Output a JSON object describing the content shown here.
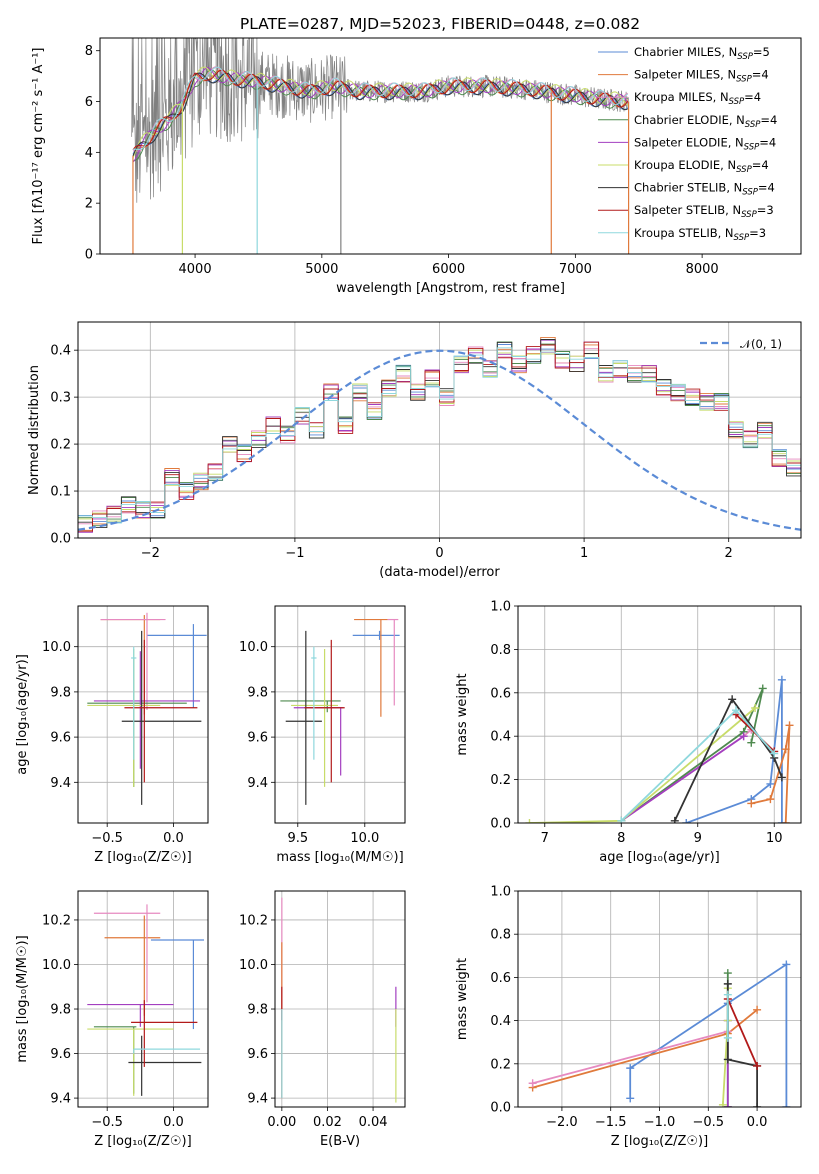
{
  "title": "PLATE=0287, MJD=52023, FIBERID=0448, z=0.082",
  "colors": {
    "Chabrier MILES": "#5b8bd6",
    "Salpeter MILES": "#e07a3c",
    "Kroupa MILES": "#e68ac0",
    "Chabrier ELODIE": "#4f8a4f",
    "Salpeter ELODIE": "#a33fc0",
    "Kroupa ELODIE": "#c8dc6a",
    "Chabrier STELIB": "#333333",
    "Salpeter STELIB": "#b21a1a",
    "Kroupa STELIB": "#8fd8dd",
    "data": "#808080"
  },
  "chart_data": [
    {
      "id": "spectrum",
      "type": "line",
      "xlabel": "wavelength [Angstrom, rest frame]",
      "ylabel": "Flux [fλ10⁻¹⁷ erg cm⁻² s⁻¹ A⁻¹]",
      "xlim": [
        3250,
        8780
      ],
      "ylim": [
        0,
        8.5
      ],
      "xticks": [
        4000,
        5000,
        6000,
        7000,
        8000
      ],
      "yticks": [
        0,
        2,
        4,
        6,
        8
      ],
      "grid": false,
      "legend_position": "right",
      "legend": [
        "Chabrier MILES, NSSP=5",
        "Salpeter MILES, NSSP=4",
        "Kroupa MILES, NSSP=4",
        "Chabrier ELODIE, NSSP=4",
        "Salpeter ELODIE, NSSP=4",
        "Kroupa ELODIE, NSSP=4",
        "Chabrier STELIB, NSSP=4",
        "Salpeter STELIB, NSSP=3",
        "Kroupa STELIB, NSSP=3"
      ],
      "continuum": {
        "x": [
          3500,
          3600,
          3700,
          3800,
          3900,
          4000,
          4100,
          4200,
          4300,
          4500,
          4700,
          4900,
          5100,
          5300,
          5500,
          5800,
          6000,
          6300,
          6600,
          6900,
          7200,
          7420
        ],
        "y": [
          3.8,
          4.4,
          4.9,
          5.3,
          5.9,
          6.9,
          7.1,
          7.0,
          6.9,
          6.8,
          6.6,
          6.4,
          6.6,
          6.4,
          6.4,
          6.4,
          6.6,
          6.6,
          6.5,
          6.3,
          6.1,
          6.0
        ]
      },
      "drop_markers": [
        {
          "x": 3510,
          "series": "Salpeter MILES"
        },
        {
          "x": 3900,
          "series": "Kroupa ELODIE"
        },
        {
          "x": 4490,
          "series": "Kroupa STELIB"
        },
        {
          "x": 5150,
          "series": "data"
        },
        {
          "x": 6810,
          "series": "Salpeter MILES"
        },
        {
          "x": 7420,
          "series": "Salpeter MILES"
        }
      ]
    },
    {
      "id": "residuals",
      "type": "bar",
      "xlabel": "(data-model)/error",
      "ylabel": "Normed distribution",
      "xlim": [
        -2.5,
        2.5
      ],
      "ylim": [
        0,
        0.46
      ],
      "xticks": [
        -2,
        -1,
        0,
        1,
        2
      ],
      "yticks": [
        0.0,
        0.1,
        0.2,
        0.3,
        0.4
      ],
      "grid": true,
      "legend": [
        "𝒩(0, 1)"
      ],
      "legend_position": "top-right",
      "bin_width": 0.1,
      "bin_values": [
        0.02,
        0.03,
        0.04,
        0.05,
        0.07,
        0.06,
        0.06,
        0.13,
        0.1,
        0.12,
        0.14,
        0.2,
        0.18,
        0.21,
        0.24,
        0.22,
        0.26,
        0.23,
        0.31,
        0.24,
        0.31,
        0.27,
        0.32,
        0.35,
        0.31,
        0.34,
        0.3,
        0.37,
        0.39,
        0.36,
        0.4,
        0.37,
        0.39,
        0.41,
        0.38,
        0.37,
        0.4,
        0.35,
        0.36,
        0.35,
        0.35,
        0.32,
        0.31,
        0.3,
        0.29,
        0.29,
        0.23,
        0.21,
        0.23,
        0.17,
        0.15,
        0.12,
        0.12,
        0.1,
        0.1,
        0.09,
        0.08,
        0.07,
        0.06,
        0.05,
        0.05,
        0.05,
        0.06,
        0.05,
        0.05,
        0.04,
        0.04,
        0.04,
        0.03,
        0.03
      ],
      "gaussian": {
        "mu": 0,
        "sigma": 1
      }
    },
    {
      "id": "age_vs_Z",
      "type": "scatter",
      "xlabel": "Z [log₁₀(Z/Z☉)]",
      "ylabel": "age [log₁₀(age/yr)]",
      "xlim": [
        -0.72,
        0.26
      ],
      "ylim": [
        9.22,
        10.18
      ],
      "xticks": [
        -0.5,
        0.0
      ],
      "yticks": [
        9.4,
        9.6,
        9.8,
        10.0
      ],
      "grid": true,
      "points": [
        {
          "series": "Chabrier MILES",
          "x": 0.15,
          "y": 10.05,
          "xerr": [
            0.35,
            0.1
          ],
          "yerr": [
            0.32,
            0.05
          ]
        },
        {
          "series": "Salpeter MILES",
          "x": -0.22,
          "y": 10.12,
          "xerr": [
            0.33,
            0.12
          ],
          "yerr": [
            0.42,
            0.02
          ]
        },
        {
          "series": "Kroupa MILES",
          "x": -0.2,
          "y": 10.12,
          "xerr": [
            0.35,
            0.14
          ],
          "yerr": [
            0.4,
            0.03
          ]
        },
        {
          "series": "Chabrier ELODIE",
          "x": -0.3,
          "y": 9.75,
          "xerr": [
            0.35,
            0.4
          ],
          "yerr": [
            0.37,
            0.2
          ]
        },
        {
          "series": "Salpeter ELODIE",
          "x": -0.25,
          "y": 9.76,
          "xerr": [
            0.35,
            0.45
          ],
          "yerr": [
            0.3,
            0.22
          ]
        },
        {
          "series": "Kroupa ELODIE",
          "x": -0.3,
          "y": 9.74,
          "xerr": [
            0.35,
            0.2
          ],
          "yerr": [
            0.36,
            0.25
          ]
        },
        {
          "series": "Chabrier STELIB",
          "x": -0.24,
          "y": 9.67,
          "xerr": [
            0.15,
            0.45
          ],
          "yerr": [
            0.37,
            0.4
          ]
        },
        {
          "series": "Salpeter STELIB",
          "x": -0.22,
          "y": 9.73,
          "xerr": [
            0.15,
            0.4
          ],
          "yerr": [
            0.33,
            0.3
          ]
        },
        {
          "series": "Kroupa STELIB",
          "x": -0.3,
          "y": 9.95,
          "xerr": [
            0.02,
            0.02
          ],
          "yerr": [
            0.45,
            0.05
          ]
        }
      ]
    },
    {
      "id": "age_vs_mass",
      "type": "scatter",
      "xlabel": "mass [log₁₀(M/M☉)]",
      "ylabel": "",
      "xlim": [
        9.33,
        10.3
      ],
      "ylim": [
        9.22,
        10.18
      ],
      "xticks": [
        9.5,
        10.0
      ],
      "yticks": [
        9.4,
        9.6,
        9.8,
        10.0
      ],
      "grid": true,
      "points": [
        {
          "series": "Chabrier MILES",
          "x": 10.11,
          "y": 10.05,
          "xerr": [
            0.2,
            0.15
          ],
          "yerr": [
            0.02,
            0.02
          ]
        },
        {
          "series": "Salpeter MILES",
          "x": 10.12,
          "y": 10.12,
          "xerr": [
            0.2,
            0.05
          ],
          "yerr": [
            0.43,
            0.0
          ]
        },
        {
          "series": "Kroupa MILES",
          "x": 10.22,
          "y": 10.12,
          "xerr": [
            0.05,
            0.03
          ],
          "yerr": [
            0.38,
            0.0
          ]
        },
        {
          "series": "Chabrier ELODIE",
          "x": 9.72,
          "y": 9.76,
          "xerr": [
            0.35,
            0.1
          ],
          "yerr": [
            0.05,
            0.0
          ]
        },
        {
          "series": "Salpeter ELODIE",
          "x": 9.82,
          "y": 9.73,
          "xerr": [
            0.35,
            0.02
          ],
          "yerr": [
            0.3,
            0.0
          ]
        },
        {
          "series": "Kroupa ELODIE",
          "x": 9.7,
          "y": 9.74,
          "xerr": [
            0.25,
            0.1
          ],
          "yerr": [
            0.36,
            0.25
          ]
        },
        {
          "series": "Chabrier STELIB",
          "x": 9.56,
          "y": 9.67,
          "xerr": [
            0.15,
            0.12
          ],
          "yerr": [
            0.37,
            0.4
          ]
        },
        {
          "series": "Salpeter STELIB",
          "x": 9.75,
          "y": 9.73,
          "xerr": [
            0.2,
            0.1
          ],
          "yerr": [
            0.33,
            0.3
          ]
        },
        {
          "series": "Kroupa STELIB",
          "x": 9.62,
          "y": 9.95,
          "xerr": [
            0.02,
            0.02
          ],
          "yerr": [
            0.45,
            0.05
          ]
        }
      ]
    },
    {
      "id": "massweight_vs_age",
      "type": "line",
      "xlabel": "age [log₁₀(age/yr)]",
      "ylabel": "mass weight",
      "xlim": [
        6.65,
        10.35
      ],
      "ylim": [
        0,
        1.0
      ],
      "xticks": [
        7,
        8,
        9,
        10
      ],
      "yticks": [
        0.0,
        0.2,
        0.4,
        0.6,
        0.8,
        1.0
      ],
      "grid": true,
      "series": [
        {
          "name": "Chabrier MILES",
          "x": [
            8.85,
            9.7,
            9.95,
            10.1,
            10.1
          ],
          "y": [
            0.0,
            0.11,
            0.18,
            0.66,
            0.0
          ]
        },
        {
          "name": "Salpeter MILES",
          "x": [
            9.7,
            9.95,
            10.15,
            10.2,
            10.15
          ],
          "y": [
            0.09,
            0.11,
            0.34,
            0.45,
            0.0
          ]
        },
        {
          "name": "Kroupa MILES",
          "x": [
            8.0,
            9.6,
            9.7
          ],
          "y": [
            0.01,
            0.4,
            0.43
          ]
        },
        {
          "name": "Chabrier ELODIE",
          "x": [
            8.0,
            9.6,
            9.85,
            9.7
          ],
          "y": [
            0.01,
            0.42,
            0.62,
            0.37
          ]
        },
        {
          "name": "Salpeter ELODIE",
          "x": [
            8.0,
            9.6
          ],
          "y": [
            0.01,
            0.4
          ]
        },
        {
          "name": "Kroupa ELODIE",
          "x": [
            6.8,
            8.0,
            9.75
          ],
          "y": [
            0.0,
            0.01,
            0.53
          ]
        },
        {
          "name": "Chabrier STELIB",
          "x": [
            8.7,
            9.45,
            10.0,
            10.1
          ],
          "y": [
            0.01,
            0.57,
            0.3,
            0.21
          ]
        },
        {
          "name": "Salpeter STELIB",
          "x": [
            9.5,
            10.0
          ],
          "y": [
            0.5,
            0.33
          ]
        },
        {
          "name": "Kroupa STELIB",
          "x": [
            8.0,
            9.5,
            10.0
          ],
          "y": [
            0.01,
            0.52,
            0.32
          ]
        }
      ]
    },
    {
      "id": "mass_vs_Z",
      "type": "scatter",
      "xlabel": "Z [log₁₀(Z/Z☉)]",
      "ylabel": "mass [log₁₀(M/M☉)]",
      "xlim": [
        -0.72,
        0.26
      ],
      "ylim": [
        9.36,
        10.33
      ],
      "xticks": [
        -0.5,
        0.0
      ],
      "yticks": [
        9.4,
        9.6,
        9.8,
        10.0,
        10.2
      ],
      "grid": true,
      "points": [
        {
          "series": "Chabrier MILES",
          "x": 0.15,
          "y": 10.11,
          "xerr": [
            0.32,
            0.08
          ],
          "yerr": [
            0.4,
            0.0
          ]
        },
        {
          "series": "Salpeter MILES",
          "x": -0.22,
          "y": 10.12,
          "xerr": [
            0.3,
            0.12
          ],
          "yerr": [
            0.35,
            0.1
          ]
        },
        {
          "series": "Kroupa MILES",
          "x": -0.2,
          "y": 10.23,
          "xerr": [
            0.4,
            0.1
          ],
          "yerr": [
            0.4,
            0.04
          ]
        },
        {
          "series": "Chabrier ELODIE",
          "x": -0.3,
          "y": 9.72,
          "xerr": [
            0.3,
            0.02
          ],
          "yerr": [
            0.3,
            0.0
          ]
        },
        {
          "series": "Salpeter ELODIE",
          "x": -0.25,
          "y": 9.82,
          "xerr": [
            0.4,
            0.25
          ],
          "yerr": [
            0.1,
            0.0
          ]
        },
        {
          "series": "Kroupa ELODIE",
          "x": -0.3,
          "y": 9.71,
          "xerr": [
            0.35,
            0.3
          ],
          "yerr": [
            0.3,
            0.0
          ]
        },
        {
          "series": "Chabrier STELIB",
          "x": -0.24,
          "y": 9.56,
          "xerr": [
            0.1,
            0.45
          ],
          "yerr": [
            0.15,
            0.12
          ]
        },
        {
          "series": "Salpeter STELIB",
          "x": -0.22,
          "y": 9.74,
          "xerr": [
            0.1,
            0.4
          ],
          "yerr": [
            0.2,
            0.1
          ]
        },
        {
          "series": "Kroupa STELIB",
          "x": -0.3,
          "y": 9.62,
          "xerr": [
            0.0,
            0.5
          ],
          "yerr": [
            0.02,
            0.0
          ]
        }
      ]
    },
    {
      "id": "mass_vs_EBV",
      "type": "scatter",
      "xlabel": "E(B-V)",
      "ylabel": "",
      "xlim": [
        -0.003,
        0.054
      ],
      "ylim": [
        9.36,
        10.33
      ],
      "xticks": [
        0.0,
        0.02,
        0.04
      ],
      "yticks": [
        9.4,
        9.6,
        9.8,
        10.0,
        10.2
      ],
      "grid": true,
      "points": [
        {
          "series": "Kroupa MILES",
          "x": 0.0,
          "y": 10.1,
          "xerr": [
            0.0,
            0.0
          ],
          "yerr": [
            0.7,
            0.2
          ]
        },
        {
          "series": "Salpeter MILES",
          "x": 0.0,
          "y": 10.0,
          "xerr": [
            0.0,
            0.0
          ],
          "yerr": [
            0.6,
            0.1
          ]
        },
        {
          "series": "Salpeter STELIB",
          "x": 0.0,
          "y": 9.85,
          "xerr": [
            0.0,
            0.0
          ],
          "yerr": [
            0.1,
            0.05
          ]
        },
        {
          "series": "Kroupa STELIB",
          "x": 0.0,
          "y": 9.6,
          "xerr": [
            0.0,
            0.0
          ],
          "yerr": [
            0.2,
            0.2
          ]
        },
        {
          "series": "Salpeter ELODIE",
          "x": 0.05,
          "y": 9.82,
          "xerr": [
            0.0,
            0.0
          ],
          "yerr": [
            0.1,
            0.08
          ]
        },
        {
          "series": "Kroupa ELODIE",
          "x": 0.05,
          "y": 9.6,
          "xerr": [
            0.0,
            0.0
          ],
          "yerr": [
            0.22,
            0.2
          ]
        }
      ]
    },
    {
      "id": "massweight_vs_Z",
      "type": "line",
      "xlabel": "Z [log₁₀(Z/Z☉)]",
      "ylabel": "mass weight",
      "xlim": [
        -2.45,
        0.45
      ],
      "ylim": [
        0,
        1.0
      ],
      "xticks": [
        -2.0,
        -1.5,
        -1.0,
        -0.5,
        0.0
      ],
      "yticks": [
        0.0,
        0.2,
        0.4,
        0.6,
        0.8,
        1.0
      ],
      "grid": true,
      "series": [
        {
          "name": "Chabrier MILES",
          "x": [
            -1.3,
            -1.3,
            -0.3,
            0.3,
            0.3
          ],
          "y": [
            0.04,
            0.18,
            0.48,
            0.66,
            0.0
          ]
        },
        {
          "name": "Salpeter MILES",
          "x": [
            -2.3,
            -0.3,
            0.0
          ],
          "y": [
            0.09,
            0.34,
            0.45
          ]
        },
        {
          "name": "Kroupa MILES",
          "x": [
            -2.3,
            -0.3
          ],
          "y": [
            0.11,
            0.35
          ]
        },
        {
          "name": "Chabrier ELODIE",
          "x": [
            -0.3,
            -0.3
          ],
          "y": [
            0.0,
            0.62
          ]
        },
        {
          "name": "Salpeter ELODIE",
          "x": [
            -0.3,
            -0.3
          ],
          "y": [
            0.0,
            0.4
          ]
        },
        {
          "name": "Kroupa ELODIE",
          "x": [
            -0.35,
            -0.3,
            -0.3
          ],
          "y": [
            0.01,
            0.4,
            0.55
          ]
        },
        {
          "name": "Chabrier STELIB",
          "x": [
            -0.3,
            -0.3,
            0.0,
            0.0
          ],
          "y": [
            0.57,
            0.22,
            0.19,
            0.0
          ]
        },
        {
          "name": "Salpeter STELIB",
          "x": [
            -0.3,
            0.0
          ],
          "y": [
            0.5,
            0.19
          ]
        },
        {
          "name": "Kroupa STELIB",
          "x": [
            -0.3,
            -0.3
          ],
          "y": [
            0.32,
            0.52
          ]
        }
      ]
    }
  ]
}
